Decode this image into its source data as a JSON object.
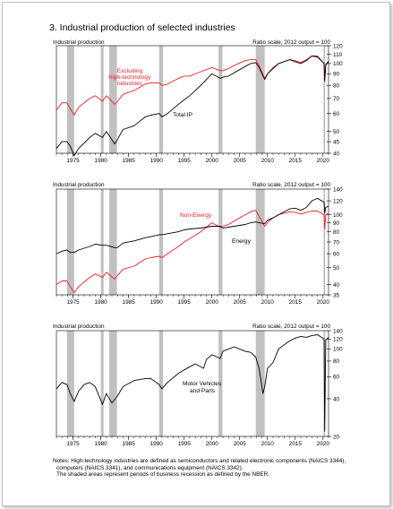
{
  "figure": {
    "title": "3. Industrial production of selected industries",
    "notes": [
      "Notes:  High-technology industries are defined as semiconductors and related electronic components (NAICS 3344),",
      "computers (NAICS 3341), and communications equipment (NAICS 3342).",
      "The shaded areas represent periods of business recession as defined by the NBER."
    ]
  },
  "colors": {
    "red": "#ee1c25",
    "black": "#000000",
    "recession": "#c0c0c0"
  },
  "chart_data": [
    {
      "type": "line",
      "left_label": "Industrial production",
      "right_label": "Ratio scale, 2012 output = 100",
      "scale": "log",
      "ylim": [
        40,
        120
      ],
      "yticks": [
        40,
        45,
        50,
        60,
        70,
        80,
        90,
        100,
        110,
        120
      ],
      "xlim": [
        1972,
        2021
      ],
      "xticks": [
        1975,
        1980,
        1985,
        1990,
        1995,
        2000,
        2005,
        2010,
        2015,
        2020
      ],
      "recessions": [
        [
          1973.9,
          1975.2
        ],
        [
          1980.0,
          1980.5
        ],
        [
          1981.5,
          1982.9
        ],
        [
          1990.5,
          1991.2
        ],
        [
          2001.2,
          2001.9
        ],
        [
          2007.9,
          2009.5
        ],
        [
          2020.1,
          2020.4
        ]
      ],
      "series": [
        {
          "name": "Excluding high-technology industries",
          "color": "#ee1c25",
          "x": [
            1972,
            1973,
            1973.9,
            1974.5,
            1975.2,
            1976,
            1978,
            1979,
            1980.3,
            1981,
            1982.5,
            1983,
            1984,
            1986,
            1988,
            1989,
            1990.5,
            1991,
            1992,
            1994,
            1995,
            1996,
            1998,
            2000,
            2001.5,
            2002,
            2003,
            2004,
            2006,
            2007,
            2007.9,
            2008.5,
            2009.5,
            2010,
            2011,
            2012,
            2014,
            2015,
            2016,
            2017,
            2018,
            2019,
            2020.2,
            2020.3,
            2020.5,
            2021
          ],
          "y": [
            62,
            67,
            67,
            63,
            59,
            64,
            70,
            72,
            68,
            72,
            66,
            68,
            73,
            76,
            81,
            82,
            82,
            80,
            81,
            86,
            88,
            88,
            92,
            96,
            93,
            93,
            95,
            98,
            103,
            104,
            104,
            98,
            86,
            90,
            96,
            100,
            104,
            103,
            101,
            104,
            108,
            108,
            100,
            83,
            98,
            103
          ]
        },
        {
          "name": "Total IP",
          "color": "#000000",
          "x": [
            1972,
            1973,
            1973.9,
            1974.5,
            1975.2,
            1976,
            1978,
            1979,
            1980.3,
            1981,
            1982.5,
            1983,
            1984,
            1986,
            1988,
            1989,
            1990.5,
            1991,
            1992,
            1994,
            1995,
            1996,
            1998,
            2000,
            2001.5,
            2002,
            2003,
            2004,
            2006,
            2007,
            2007.9,
            2008.5,
            2009.5,
            2010,
            2011,
            2012,
            2014,
            2015,
            2016,
            2017,
            2018,
            2019,
            2020.2,
            2020.3,
            2020.5,
            2021
          ],
          "y": [
            42,
            45,
            45,
            43,
            39,
            42,
            47,
            49,
            47,
            50,
            44,
            46,
            51,
            53,
            58,
            59,
            60,
            58,
            60,
            66,
            69,
            72,
            80,
            90,
            86,
            87,
            88,
            91,
            97,
            100,
            101,
            96,
            85,
            90,
            95,
            100,
            104,
            102,
            100,
            103,
            108,
            107,
            100,
            84,
            99,
            102
          ]
        }
      ],
      "annotations": [
        {
          "text": "Excluding",
          "color": "#ee1c25"
        },
        {
          "text": "high-technology",
          "color": "#ee1c25"
        },
        {
          "text": "industries",
          "color": "#ee1c25"
        },
        {
          "text": "Total IP",
          "color": "#000000"
        }
      ]
    },
    {
      "type": "line",
      "left_label": "Industrial production",
      "right_label": "Ratio scale, 2012 output = 100",
      "scale": "log",
      "ylim": [
        35,
        140
      ],
      "yticks": [
        35,
        40,
        50,
        60,
        70,
        80,
        90,
        100,
        120,
        140
      ],
      "xlim": [
        1972,
        2021
      ],
      "xticks": [
        1975,
        1980,
        1985,
        1990,
        1995,
        2000,
        2005,
        2010,
        2015,
        2020
      ],
      "recessions": [
        [
          1973.9,
          1975.2
        ],
        [
          1980.0,
          1980.5
        ],
        [
          1981.5,
          1982.9
        ],
        [
          1990.5,
          1991.2
        ],
        [
          2001.2,
          2001.9
        ],
        [
          2007.9,
          2009.5
        ],
        [
          2020.1,
          2020.4
        ]
      ],
      "series": [
        {
          "name": "Non-Energy",
          "color": "#ee1c25",
          "x": [
            1972,
            1973,
            1973.9,
            1974.5,
            1975.2,
            1976,
            1978,
            1979,
            1980.3,
            1981,
            1982.5,
            1983,
            1984,
            1986,
            1988,
            1989,
            1990.5,
            1991,
            1992,
            1994,
            1995,
            1996,
            1998,
            2000,
            2001.5,
            2002,
            2003,
            2004,
            2006,
            2007,
            2007.9,
            2008.5,
            2009.5,
            2010,
            2011,
            2012,
            2014,
            2015,
            2016,
            2017,
            2018,
            2019,
            2020.2,
            2020.3,
            2020.5,
            2021
          ],
          "y": [
            40,
            42,
            42,
            39,
            36,
            39,
            44,
            46,
            44,
            47,
            43,
            45,
            49,
            51,
            56,
            57,
            58,
            57,
            60,
            66,
            70,
            73,
            80,
            90,
            85,
            86,
            88,
            92,
            100,
            104,
            106,
            98,
            86,
            90,
            96,
            100,
            104,
            103,
            101,
            103,
            105,
            105,
            100,
            83,
            100,
            102
          ]
        },
        {
          "name": "Energy",
          "color": "#000000",
          "x": [
            1972,
            1973,
            1973.9,
            1974.5,
            1975.2,
            1976,
            1978,
            1979,
            1980.3,
            1981,
            1982.5,
            1983,
            1984,
            1986,
            1988,
            1989,
            1990.5,
            1991,
            1992,
            1994,
            1995,
            1996,
            1998,
            2000,
            2001.5,
            2002,
            2003,
            2004,
            2006,
            2007,
            2007.9,
            2008.5,
            2009.5,
            2010,
            2011,
            2012,
            2014,
            2015,
            2016,
            2017,
            2018,
            2019,
            2020.2,
            2020.3,
            2020.5,
            2021
          ],
          "y": [
            60,
            62,
            63,
            61,
            61,
            63,
            66,
            68,
            67,
            67,
            65,
            65,
            69,
            71,
            74,
            75,
            77,
            77,
            78,
            80,
            82,
            83,
            84,
            86,
            86,
            84,
            85,
            86,
            88,
            90,
            91,
            90,
            89,
            93,
            96,
            100,
            108,
            109,
            106,
            110,
            120,
            124,
            118,
            102,
            110,
            112
          ]
        }
      ],
      "annotations": [
        {
          "text": "Non-Energy",
          "color": "#ee1c25"
        },
        {
          "text": "Energy",
          "color": "#000000"
        }
      ]
    },
    {
      "type": "line",
      "left_label": "Industrial production",
      "right_label": "Ratio scale, 2012 output = 100",
      "scale": "log",
      "ylim": [
        20,
        140
      ],
      "yticks": [
        20,
        40,
        60,
        80,
        100,
        120,
        140
      ],
      "xlim": [
        1972,
        2021
      ],
      "xticks": [
        1975,
        1980,
        1985,
        1990,
        1995,
        2000,
        2005,
        2010,
        2015,
        2020
      ],
      "recessions": [
        [
          1973.9,
          1975.2
        ],
        [
          1980.0,
          1980.5
        ],
        [
          1981.5,
          1982.9
        ],
        [
          1990.5,
          1991.2
        ],
        [
          2001.2,
          2001.9
        ],
        [
          2007.9,
          2009.5
        ],
        [
          2020.1,
          2020.4
        ]
      ],
      "series": [
        {
          "name": "Motor Vehicles and Parts",
          "color": "#000000",
          "x": [
            1972,
            1973,
            1973.9,
            1974.5,
            1975.2,
            1976,
            1977,
            1978,
            1979,
            1980.3,
            1981,
            1982,
            1983,
            1984,
            1986,
            1988,
            1989,
            1990.5,
            1991,
            1992,
            1994,
            1995,
            1996,
            1997,
            1998.5,
            1999,
            2000,
            2001.5,
            2002,
            2004,
            2006,
            2007,
            2007.9,
            2008.5,
            2009.2,
            2009.5,
            2010,
            2011,
            2012,
            2013,
            2014,
            2015,
            2016,
            2017,
            2018,
            2019,
            2020.2,
            2020.3,
            2020.5,
            2021
          ],
          "y": [
            48,
            54,
            52,
            44,
            38,
            46,
            52,
            54,
            50,
            36,
            44,
            37,
            42,
            50,
            56,
            58,
            58,
            52,
            48,
            54,
            64,
            68,
            72,
            76,
            70,
            82,
            90,
            84,
            96,
            104,
            96,
            94,
            86,
            70,
            44,
            50,
            70,
            78,
            100,
            108,
            116,
            122,
            126,
            124,
            128,
            130,
            120,
            22,
            118,
            124
          ]
        }
      ],
      "annotations": [
        {
          "text": "Motor Vehicles",
          "color": "#000000"
        },
        {
          "text": "and Parts",
          "color": "#000000"
        }
      ]
    }
  ]
}
